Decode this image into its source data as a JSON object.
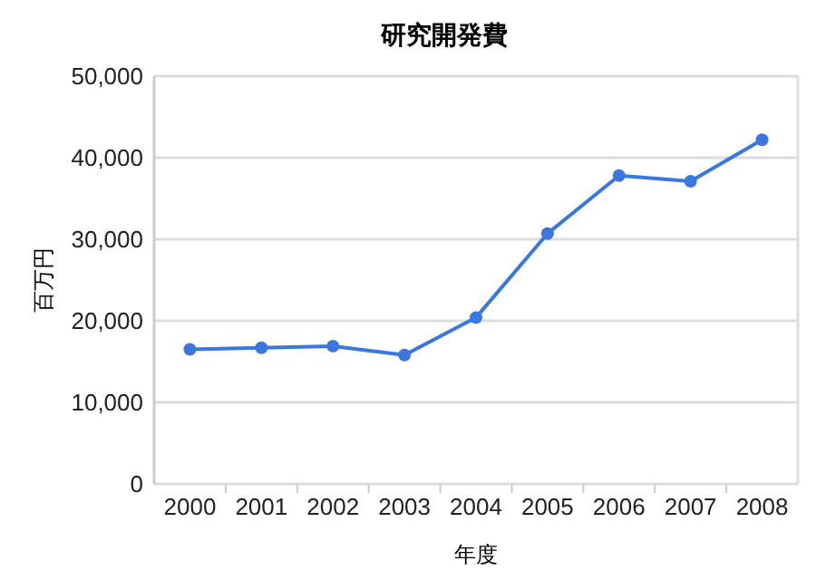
{
  "chart_data": {
    "type": "line",
    "title": "研究開発費",
    "xlabel": "年度",
    "ylabel": "百万円",
    "categories": [
      "2000",
      "2001",
      "2002",
      "2003",
      "2004",
      "2005",
      "2006",
      "2007",
      "2008"
    ],
    "series": [
      {
        "color": "#3a78e0",
        "values": [
          16500,
          16700,
          16900,
          15800,
          20400,
          30700,
          37800,
          37100,
          42200
        ]
      }
    ],
    "ylim": [
      0,
      50000
    ],
    "yticks": [
      {
        "value": 0,
        "label": "0"
      },
      {
        "value": 10000,
        "label": "10,000"
      },
      {
        "value": 20000,
        "label": "20,000"
      },
      {
        "value": 30000,
        "label": "30,000"
      },
      {
        "value": 40000,
        "label": "40,000"
      },
      {
        "value": 50000,
        "label": "50,000"
      }
    ],
    "grid": "y",
    "marker": "circle"
  }
}
